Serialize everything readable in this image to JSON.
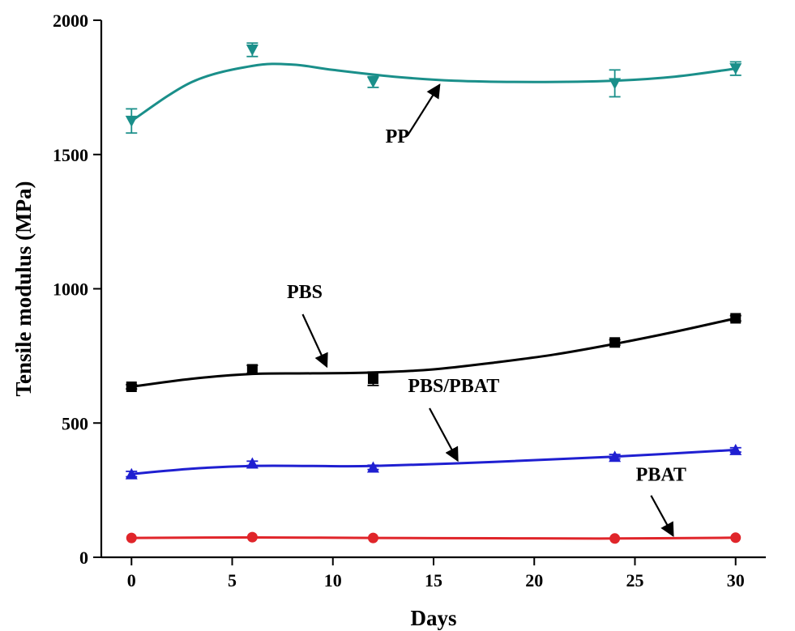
{
  "chart_data": {
    "type": "line",
    "xlabel": "Days",
    "ylabel": "Tensile modulus (MPa)",
    "xlim": [
      -1.5,
      31.5
    ],
    "ylim": [
      0,
      2000
    ],
    "xticks": [
      0,
      5,
      10,
      15,
      20,
      25,
      30
    ],
    "yticks": [
      0,
      500,
      1000,
      1500,
      2000
    ],
    "grid": false,
    "series": [
      {
        "name": "PP",
        "color": "#1a8f8a",
        "marker": "triangle-down",
        "x": [
          0,
          6,
          12,
          24,
          30
        ],
        "values": [
          1625,
          1890,
          1770,
          1765,
          1820
        ],
        "errors": [
          45,
          25,
          20,
          50,
          25
        ],
        "curve": [
          [
            0,
            1625
          ],
          [
            3,
            1770
          ],
          [
            6,
            1830
          ],
          [
            8,
            1835
          ],
          [
            10,
            1815
          ],
          [
            13,
            1790
          ],
          [
            16,
            1775
          ],
          [
            20,
            1770
          ],
          [
            24,
            1775
          ],
          [
            27,
            1790
          ],
          [
            30,
            1820
          ]
        ]
      },
      {
        "name": "PBS",
        "color": "#000000",
        "marker": "square",
        "x": [
          0,
          6,
          12,
          24,
          30
        ],
        "values": [
          635,
          700,
          665,
          800,
          890
        ],
        "errors": [
          8,
          15,
          25,
          10,
          10
        ],
        "curve": [
          [
            0,
            635
          ],
          [
            3,
            665
          ],
          [
            6,
            683
          ],
          [
            9,
            685
          ],
          [
            12,
            688
          ],
          [
            15,
            700
          ],
          [
            18,
            725
          ],
          [
            21,
            755
          ],
          [
            24,
            795
          ],
          [
            27,
            840
          ],
          [
            30,
            890
          ]
        ]
      },
      {
        "name": "PBS/PBAT",
        "color": "#1f1fd1",
        "marker": "triangle-up",
        "x": [
          0,
          6,
          12,
          24,
          30
        ],
        "values": [
          310,
          350,
          335,
          375,
          400
        ],
        "errors": [
          10,
          8,
          8,
          8,
          8
        ],
        "curve": [
          [
            0,
            310
          ],
          [
            3,
            330
          ],
          [
            6,
            340
          ],
          [
            9,
            340
          ],
          [
            12,
            340
          ],
          [
            18,
            355
          ],
          [
            24,
            375
          ],
          [
            30,
            400
          ]
        ]
      },
      {
        "name": "PBAT",
        "color": "#e0252a",
        "marker": "circle",
        "x": [
          0,
          6,
          12,
          24,
          30
        ],
        "values": [
          72,
          75,
          72,
          70,
          73
        ],
        "errors": [
          0,
          0,
          0,
          0,
          0
        ],
        "curve": [
          [
            0,
            72
          ],
          [
            6,
            74
          ],
          [
            12,
            72
          ],
          [
            18,
            71
          ],
          [
            24,
            70
          ],
          [
            30,
            73
          ]
        ]
      }
    ],
    "annotations": [
      {
        "text": "PP",
        "series": "PP",
        "label_at": [
          13.2,
          1545
        ],
        "arrow_from": [
          13.7,
          1570
        ],
        "arrow_to": [
          15.3,
          1760
        ]
      },
      {
        "text": "PBS",
        "series": "PBS",
        "label_at": [
          8.6,
          965
        ],
        "arrow_from": [
          8.5,
          905
        ],
        "arrow_to": [
          9.7,
          710
        ]
      },
      {
        "text": "PBS/PBAT",
        "series": "PBS/PBAT",
        "label_at": [
          16.0,
          615
        ],
        "arrow_from": [
          14.8,
          555
        ],
        "arrow_to": [
          16.2,
          360
        ]
      },
      {
        "text": "PBAT",
        "series": "PBAT",
        "label_at": [
          26.3,
          285
        ],
        "arrow_from": [
          25.8,
          230
        ],
        "arrow_to": [
          26.9,
          80
        ]
      }
    ]
  }
}
